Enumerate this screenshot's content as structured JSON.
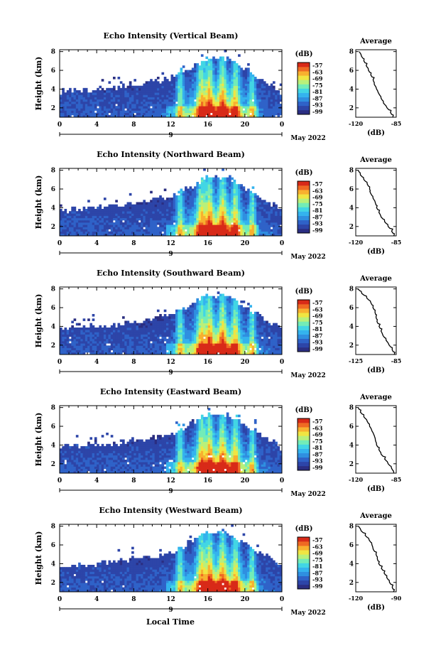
{
  "figure": {
    "xlabel": "Local Time",
    "date_label": "May 2022",
    "day_label": "9",
    "cbar_unit": "(dB)",
    "avg_xlabel": "(dB)",
    "avg_title": "Average"
  },
  "colors": {
    "background_fill": "#2a2e80",
    "scale": [
      "#2b2e82",
      "#2d45a8",
      "#2f62c8",
      "#2f8fe0",
      "#34b3ee",
      "#42d6e4",
      "#73ecb7",
      "#b9f07a",
      "#f0e542",
      "#f8b02f",
      "#ef6a23",
      "#d82a18"
    ]
  },
  "chart_data": [
    {
      "type": "heatmap",
      "title": "Echo Intensity (Vertical Beam)",
      "ylabel": "Height (km)",
      "x_ticks": [
        "0",
        "4",
        "8",
        "12",
        "16",
        "20",
        "0"
      ],
      "y_ticks": [
        "2",
        "4",
        "6",
        "8"
      ],
      "xlim": [
        0,
        24
      ],
      "ylim": [
        1,
        8.2
      ],
      "colorbar": {
        "ticks": [
          "-57",
          "-63",
          "-69",
          "-75",
          "-81",
          "-87",
          "-93",
          "-99"
        ],
        "range_db": [
          -99,
          -57
        ]
      },
      "average": {
        "title": "Average",
        "xlabel": "(dB)",
        "x_ticks": [
          "-120",
          "-85"
        ],
        "y_ticks": [
          "2",
          "4",
          "6",
          "8"
        ],
        "xlim": [
          -120,
          -85
        ],
        "ylim": [
          1,
          8.2
        ],
        "profile": [
          [
            -88,
            1
          ],
          [
            -90,
            1.5
          ],
          [
            -93,
            2
          ],
          [
            -96,
            2.5
          ],
          [
            -98,
            3
          ],
          [
            -100,
            3.5
          ],
          [
            -102,
            4
          ],
          [
            -104,
            4.5
          ],
          [
            -105,
            5
          ],
          [
            -107,
            5.5
          ],
          [
            -109,
            6
          ],
          [
            -111,
            6.5
          ],
          [
            -113,
            7
          ],
          [
            -115,
            7.5
          ],
          [
            -117,
            8
          ]
        ]
      }
    },
    {
      "type": "heatmap",
      "title": "Echo Intensity (Northward Beam)",
      "ylabel": "Height (km)",
      "x_ticks": [
        "0",
        "4",
        "8",
        "12",
        "16",
        "20",
        "0"
      ],
      "y_ticks": [
        "2",
        "4",
        "6",
        "8"
      ],
      "xlim": [
        0,
        24
      ],
      "ylim": [
        1,
        8.2
      ],
      "colorbar": {
        "ticks": [
          "-57",
          "-63",
          "-69",
          "-75",
          "-81",
          "-87",
          "-93",
          "-99"
        ],
        "range_db": [
          -99,
          -57
        ]
      },
      "average": {
        "title": "Average",
        "xlabel": "(dB)",
        "x_ticks": [
          "-120",
          "-85"
        ],
        "y_ticks": [
          "2",
          "4",
          "6",
          "8"
        ],
        "xlim": [
          -120,
          -85
        ],
        "ylim": [
          1,
          8.2
        ],
        "profile": [
          [
            -87,
            1
          ],
          [
            -89,
            1.5
          ],
          [
            -92,
            2
          ],
          [
            -95,
            2.5
          ],
          [
            -98,
            3
          ],
          [
            -100,
            3.5
          ],
          [
            -102,
            4
          ],
          [
            -103,
            4.5
          ],
          [
            -105,
            5
          ],
          [
            -107,
            5.5
          ],
          [
            -108,
            6
          ],
          [
            -110,
            6.5
          ],
          [
            -113,
            7
          ],
          [
            -116,
            7.5
          ],
          [
            -118,
            8
          ]
        ]
      }
    },
    {
      "type": "heatmap",
      "title": "Echo Intensity (Southward Beam)",
      "ylabel": "Height (km)",
      "x_ticks": [
        "0",
        "4",
        "8",
        "12",
        "16",
        "20",
        "0"
      ],
      "y_ticks": [
        "2",
        "4",
        "6",
        "8"
      ],
      "xlim": [
        0,
        24
      ],
      "ylim": [
        1,
        8.2
      ],
      "colorbar": {
        "ticks": [
          "-57",
          "-63",
          "-69",
          "-75",
          "-81",
          "-87",
          "-93",
          "-99"
        ],
        "range_db": [
          -99,
          -57
        ]
      },
      "average": {
        "title": "Average",
        "xlabel": "(dB)",
        "x_ticks": [
          "-125",
          "-85"
        ],
        "y_ticks": [
          "2",
          "4",
          "6",
          "8"
        ],
        "xlim": [
          -125,
          -85
        ],
        "ylim": [
          1,
          8.2
        ],
        "profile": [
          [
            -87,
            1
          ],
          [
            -89,
            1.5
          ],
          [
            -92,
            2
          ],
          [
            -95,
            2.5
          ],
          [
            -98,
            3
          ],
          [
            -100,
            3.5
          ],
          [
            -102,
            4
          ],
          [
            -104,
            4.5
          ],
          [
            -105,
            5
          ],
          [
            -106,
            5.5
          ],
          [
            -108,
            6
          ],
          [
            -110,
            6.5
          ],
          [
            -114,
            7
          ],
          [
            -119,
            7.5
          ],
          [
            -123,
            8
          ]
        ]
      }
    },
    {
      "type": "heatmap",
      "title": "Echo Intensity (Eastward Beam)",
      "ylabel": "Height (km)",
      "x_ticks": [
        "0",
        "4",
        "8",
        "12",
        "16",
        "20",
        "0"
      ],
      "y_ticks": [
        "2",
        "4",
        "6",
        "8"
      ],
      "xlim": [
        0,
        24
      ],
      "ylim": [
        1,
        8.2
      ],
      "colorbar": {
        "ticks": [
          "-57",
          "-63",
          "-69",
          "-75",
          "-81",
          "-87",
          "-93",
          "-99"
        ],
        "range_db": [
          -99,
          -57
        ]
      },
      "average": {
        "title": "Average",
        "xlabel": "(dB)",
        "x_ticks": [
          "-120",
          "-85"
        ],
        "y_ticks": [
          "2",
          "4",
          "6",
          "8"
        ],
        "xlim": [
          -120,
          -85
        ],
        "ylim": [
          1,
          8.2
        ],
        "profile": [
          [
            -87,
            1
          ],
          [
            -89,
            1.5
          ],
          [
            -92,
            2
          ],
          [
            -95,
            2.5
          ],
          [
            -98,
            3
          ],
          [
            -100,
            3.5
          ],
          [
            -102,
            4
          ],
          [
            -103,
            4.5
          ],
          [
            -104,
            5
          ],
          [
            -106,
            5.5
          ],
          [
            -108,
            6
          ],
          [
            -110,
            6.5
          ],
          [
            -113,
            7
          ],
          [
            -116,
            7.5
          ],
          [
            -118,
            8
          ]
        ]
      }
    },
    {
      "type": "heatmap",
      "title": "Echo Intensity (Westward Beam)",
      "ylabel": "Height (km)",
      "x_ticks": [
        "0",
        "4",
        "8",
        "12",
        "16",
        "20",
        "0"
      ],
      "y_ticks": [
        "2",
        "4",
        "6",
        "8"
      ],
      "xlim": [
        0,
        24
      ],
      "ylim": [
        1,
        8.2
      ],
      "colorbar": {
        "ticks": [
          "-57",
          "-63",
          "-69",
          "-75",
          "-81",
          "-87",
          "-93",
          "-99"
        ],
        "range_db": [
          -99,
          -57
        ]
      },
      "average": {
        "title": "Average",
        "xlabel": "(dB)",
        "x_ticks": [
          "-120",
          "-90"
        ],
        "y_ticks": [
          "2",
          "4",
          "6",
          "8"
        ],
        "xlim": [
          -120,
          -90
        ],
        "ylim": [
          1,
          8.2
        ],
        "profile": [
          [
            -92,
            1
          ],
          [
            -93,
            1.5
          ],
          [
            -95,
            2
          ],
          [
            -97,
            2.5
          ],
          [
            -99,
            3
          ],
          [
            -101,
            3.5
          ],
          [
            -103,
            4
          ],
          [
            -104,
            4.5
          ],
          [
            -105,
            5
          ],
          [
            -107,
            5.5
          ],
          [
            -108,
            6
          ],
          [
            -110,
            6.5
          ],
          [
            -113,
            7
          ],
          [
            -116,
            7.5
          ],
          [
            -118,
            8
          ]
        ]
      }
    }
  ]
}
